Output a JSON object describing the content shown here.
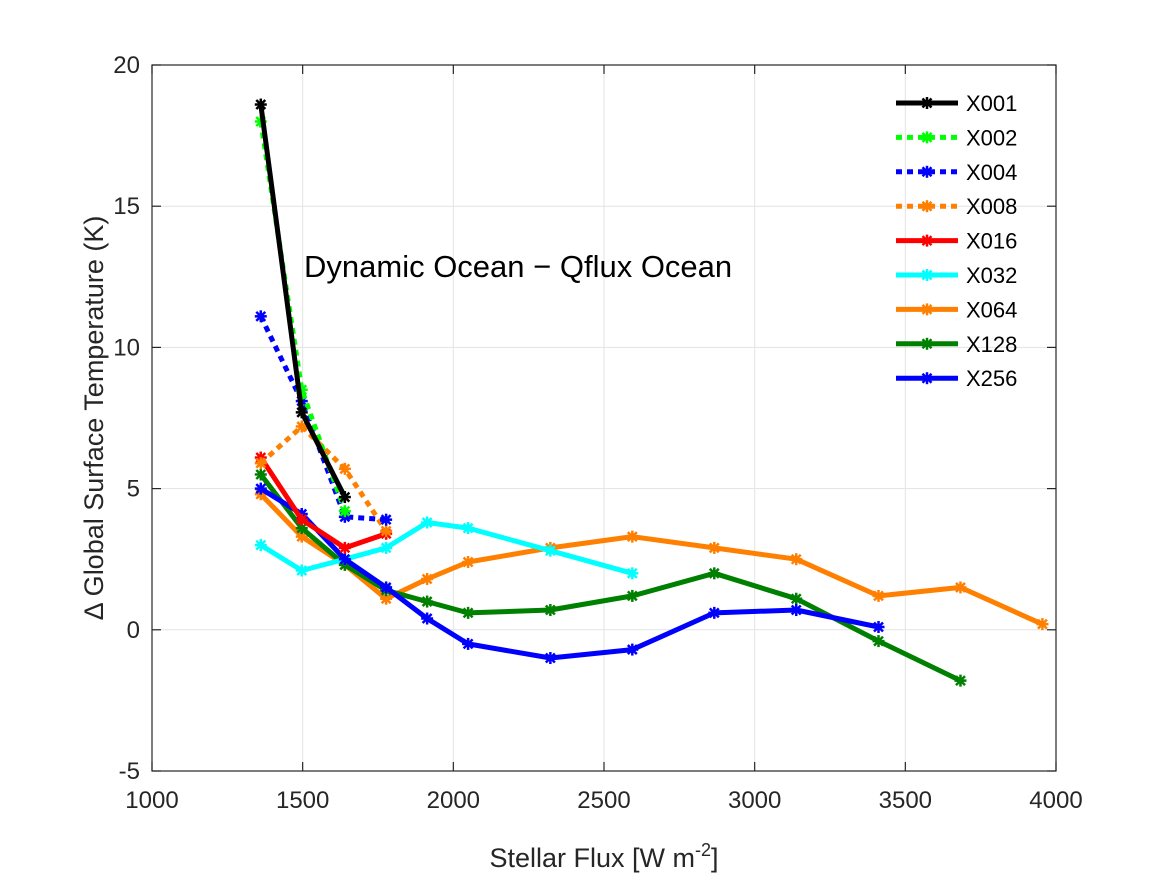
{
  "chart_data": {
    "type": "line",
    "title": "",
    "annotation": "Dynamic Ocean − Qflux Ocean",
    "xlabel": "Stellar Flux [W m",
    "xlabel_sup": "-2",
    "xlabel_end": "]",
    "ylabel": "Δ Global Surface Temperature (K)",
    "xlim": [
      1000,
      4000
    ],
    "ylim": [
      -5,
      20
    ],
    "xticks": [
      1000,
      1500,
      2000,
      2500,
      3000,
      3500,
      4000
    ],
    "yticks": [
      -5,
      0,
      5,
      10,
      15,
      20
    ],
    "grid": true,
    "legend_position": "top-right",
    "series": [
      {
        "name": "X001",
        "color": "#000000",
        "dashed": false,
        "x": [
          1361,
          1497,
          1640
        ],
        "y": [
          18.6,
          7.7,
          4.7
        ]
      },
      {
        "name": "X002",
        "color": "#00ff00",
        "dashed": true,
        "x": [
          1361,
          1497,
          1640
        ],
        "y": [
          18.0,
          8.5,
          4.2
        ]
      },
      {
        "name": "X004",
        "color": "#0000ff",
        "dashed": true,
        "x": [
          1361,
          1497,
          1640,
          1777
        ],
        "y": [
          11.1,
          8.1,
          4.0,
          3.9
        ]
      },
      {
        "name": "X008",
        "color": "#ff8000",
        "dashed": true,
        "x": [
          1361,
          1497,
          1640,
          1777
        ],
        "y": [
          5.9,
          7.2,
          5.7,
          3.5
        ]
      },
      {
        "name": "X016",
        "color": "#ff0000",
        "dashed": false,
        "x": [
          1361,
          1497,
          1640,
          1777
        ],
        "y": [
          6.1,
          3.9,
          2.9,
          3.4
        ]
      },
      {
        "name": "X032",
        "color": "#00ffff",
        "dashed": false,
        "x": [
          1361,
          1497,
          1640,
          1777,
          1913,
          2049,
          2322,
          2594
        ],
        "y": [
          3.0,
          2.1,
          2.5,
          2.9,
          3.8,
          3.6,
          2.8,
          2.0
        ]
      },
      {
        "name": "X064",
        "color": "#ff8000",
        "dashed": false,
        "x": [
          1361,
          1497,
          1640,
          1777,
          1913,
          2049,
          2322,
          2594,
          2866,
          3138,
          3411,
          3683,
          3955
        ],
        "y": [
          4.8,
          3.3,
          2.3,
          1.1,
          1.8,
          2.4,
          2.9,
          3.3,
          2.9,
          2.5,
          1.2,
          1.5,
          0.2
        ]
      },
      {
        "name": "X128",
        "color": "#008000",
        "dashed": false,
        "x": [
          1361,
          1497,
          1640,
          1777,
          1913,
          2049,
          2322,
          2594,
          2866,
          3138,
          3411,
          3683
        ],
        "y": [
          5.5,
          3.6,
          2.3,
          1.4,
          1.0,
          0.6,
          0.7,
          1.2,
          2.0,
          1.1,
          -0.4,
          -1.8
        ]
      },
      {
        "name": "X256",
        "color": "#0000ff",
        "dashed": false,
        "x": [
          1361,
          1497,
          1640,
          1777,
          1913,
          2049,
          2322,
          2594,
          2866,
          3138,
          3411
        ],
        "y": [
          5.0,
          4.1,
          2.5,
          1.5,
          0.4,
          -0.5,
          -1.0,
          -0.7,
          0.6,
          0.7,
          0.1
        ]
      }
    ]
  }
}
